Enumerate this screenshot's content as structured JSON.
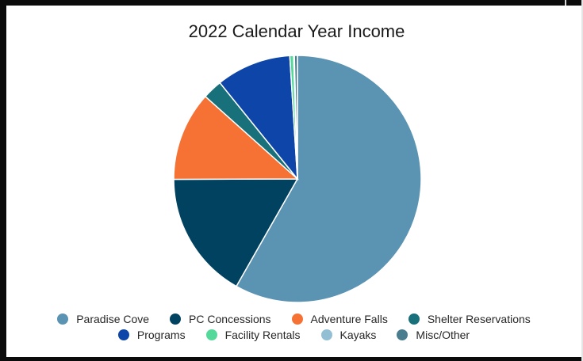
{
  "chart_data": {
    "type": "pie",
    "title": "2022 Calendar Year Income",
    "slices": [
      {
        "label": "Paradise Cove",
        "value": 58.8,
        "color": "#5b93b3"
      },
      {
        "label": "PC Concessions",
        "value": 16.9,
        "color": "#00425f"
      },
      {
        "label": "Adventure Falls",
        "value": 11.8,
        "color": "#f57234"
      },
      {
        "label": "Shelter Reservations",
        "value": 2.6,
        "color": "#17707a"
      },
      {
        "label": "Programs",
        "value": 9.9,
        "color": "#0d46a8"
      },
      {
        "label": "Facility Rentals",
        "value": 0.5,
        "color": "#55d99b"
      },
      {
        "label": "Kayaks",
        "value": 0.1,
        "color": "#92bfd4"
      },
      {
        "label": "Misc/Other",
        "value": 0.4,
        "color": "#4a7e8f"
      }
    ],
    "legend_position": "bottom",
    "legend_rows": [
      [
        "Paradise Cove",
        "PC Concessions",
        "Adventure Falls",
        "Shelter Reservations"
      ],
      [
        "Programs",
        "Facility Rentals",
        "Kayaks",
        "Misc/Other"
      ]
    ]
  }
}
